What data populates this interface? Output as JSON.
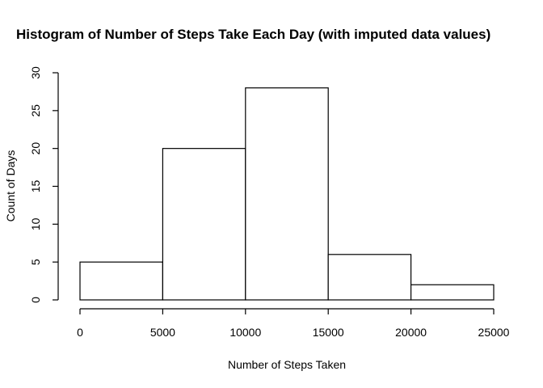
{
  "chart_data": {
    "type": "bar",
    "title": "Histogram of Number of Steps Take Each Day (with imputed data values)",
    "xlabel": "Number of Steps Taken",
    "ylabel": "Count of Days",
    "bins": [
      {
        "start": 0,
        "end": 5000,
        "count": 5
      },
      {
        "start": 5000,
        "end": 10000,
        "count": 20
      },
      {
        "start": 10000,
        "end": 15000,
        "count": 28
      },
      {
        "start": 15000,
        "end": 20000,
        "count": 6
      },
      {
        "start": 20000,
        "end": 25000,
        "count": 2
      }
    ],
    "xlim": [
      0,
      25000
    ],
    "ylim": [
      0,
      30
    ],
    "xticks": [
      0,
      5000,
      10000,
      15000,
      20000,
      25000
    ],
    "yticks": [
      0,
      5,
      10,
      15,
      20,
      25,
      30
    ],
    "grid": false,
    "colors": {
      "bar_fill": "#ffffff",
      "bar_stroke": "#000000"
    }
  }
}
